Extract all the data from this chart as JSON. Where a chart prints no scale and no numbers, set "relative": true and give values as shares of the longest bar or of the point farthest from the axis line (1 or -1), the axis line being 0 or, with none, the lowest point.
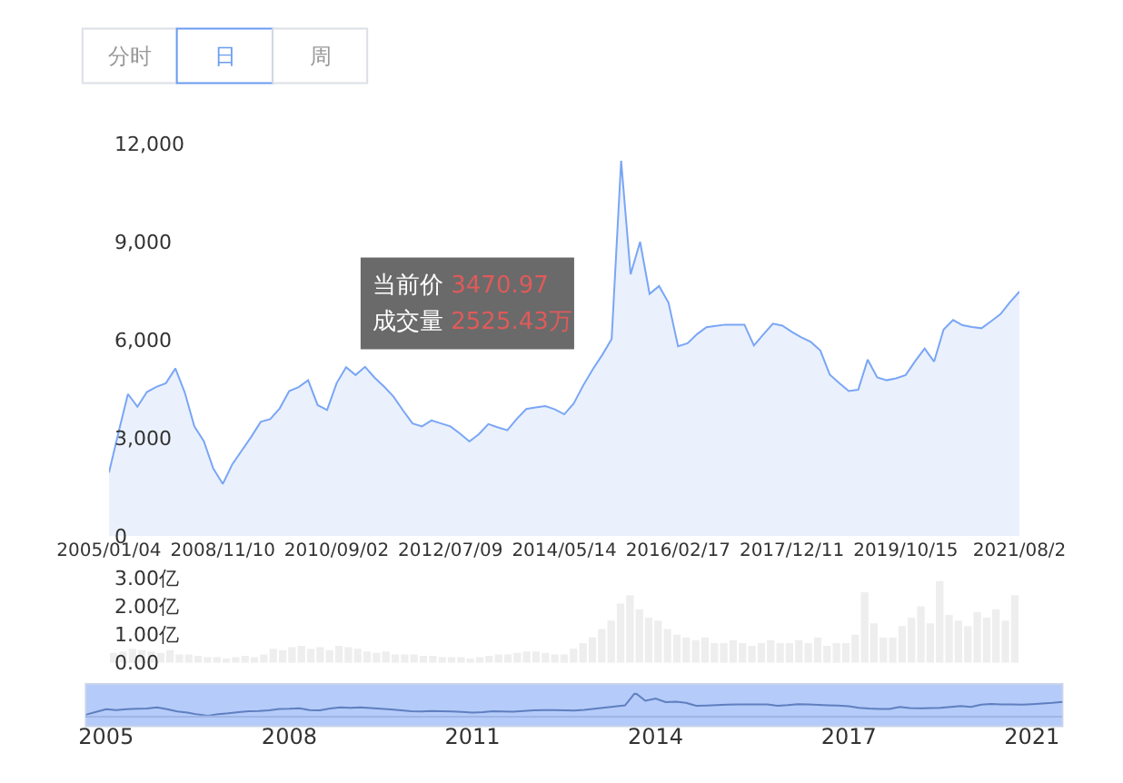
{
  "chart_data": [
    {
      "type": "area",
      "categories": [
        "2005/01/04",
        null,
        null,
        null,
        null,
        null,
        null,
        null,
        null,
        null,
        null,
        null,
        "2008/11/10",
        null,
        null,
        null,
        null,
        null,
        null,
        null,
        null,
        null,
        null,
        null,
        "2010/09/02",
        null,
        null,
        null,
        null,
        null,
        null,
        null,
        null,
        null,
        null,
        null,
        "2012/07/09",
        null,
        null,
        null,
        null,
        null,
        null,
        null,
        null,
        null,
        null,
        null,
        "2014/05/14",
        null,
        null,
        null,
        null,
        null,
        null,
        null,
        null,
        null,
        null,
        null,
        "2016/02/17",
        null,
        null,
        null,
        null,
        null,
        null,
        null,
        null,
        null,
        null,
        null,
        "2017/12/11",
        null,
        null,
        null,
        null,
        null,
        null,
        null,
        null,
        null,
        null,
        null,
        "2019/10/15",
        null,
        null,
        null,
        null,
        null,
        null,
        null,
        null,
        null,
        null,
        null,
        "2021/08/2"
      ],
      "series": [
        {
          "color": "#7aa6f5",
          "values": [
            1940,
            3160,
            4340,
            3950,
            4400,
            4560,
            4670,
            5120,
            4380,
            3350,
            2900,
            2060,
            1590,
            2190,
            2610,
            3030,
            3490,
            3570,
            3900,
            4430,
            4550,
            4760,
            4000,
            3850,
            4670,
            5160,
            4920,
            5170,
            4840,
            4570,
            4260,
            3840,
            3440,
            3350,
            3530,
            3440,
            3350,
            3130,
            2890,
            3110,
            3420,
            3320,
            3230,
            3580,
            3880,
            3930,
            3970,
            3870,
            3720,
            4050,
            4600,
            5090,
            5530,
            6020,
            11470,
            8000,
            8990,
            7400,
            7640,
            7130,
            5800,
            5890,
            6170,
            6380,
            6420,
            6460,
            6460,
            6460,
            5820,
            6160,
            6490,
            6430,
            6240,
            6070,
            5930,
            5670,
            4930,
            4670,
            4430,
            4470,
            5390,
            4850,
            4760,
            4820,
            4920,
            5340,
            5730,
            5330,
            6310,
            6600,
            6440,
            6390,
            6350,
            6560,
            6780,
            7150,
            7470
          ]
        }
      ],
      "ylim": [
        0,
        12000
      ],
      "yticks": [
        0,
        {
          "value": 3000,
          "label": "3,000"
        },
        {
          "value": 6000,
          "label": "6,000"
        },
        {
          "value": 9000,
          "label": "9,000"
        },
        {
          "value": 12000,
          "label": "12,000"
        }
      ],
      "annotations": [
        "分时",
        "日",
        "周",
        "当前价",
        "3470.97",
        "成交量",
        "2525.43万"
      ]
    },
    {
      "type": "bar",
      "categories": [
        null,
        null,
        null,
        null,
        null,
        null,
        null,
        null,
        null,
        null,
        null,
        null,
        null,
        null,
        null,
        null,
        null,
        null,
        null,
        null,
        null,
        null,
        null,
        null,
        null,
        null,
        null,
        null,
        null,
        null,
        null,
        null,
        null,
        null,
        null,
        null,
        null,
        null,
        null,
        null,
        null,
        null,
        null,
        null,
        null,
        null,
        null,
        null,
        null,
        null,
        null,
        null,
        null,
        null,
        null,
        null,
        null,
        null,
        null,
        null,
        null,
        null,
        null,
        null,
        null,
        null,
        null,
        null,
        null,
        null,
        null,
        null,
        null,
        null,
        null,
        null,
        null,
        null,
        null,
        null,
        null,
        null,
        null,
        null,
        null,
        null,
        null,
        null,
        null,
        null,
        null,
        null,
        null,
        null,
        null,
        null,
        null
      ],
      "series": [
        {
          "color": "#eeeeee",
          "values": [
            0.35,
            0.4,
            0.5,
            0.45,
            0.4,
            0.35,
            0.45,
            0.3,
            0.3,
            0.25,
            0.2,
            0.2,
            0.15,
            0.2,
            0.25,
            0.2,
            0.3,
            0.5,
            0.45,
            0.55,
            0.6,
            0.5,
            0.55,
            0.45,
            0.6,
            0.55,
            0.5,
            0.4,
            0.35,
            0.4,
            0.3,
            0.3,
            0.3,
            0.25,
            0.25,
            0.2,
            0.2,
            0.2,
            0.15,
            0.2,
            0.25,
            0.3,
            0.3,
            0.35,
            0.4,
            0.4,
            0.35,
            0.3,
            0.3,
            0.5,
            0.7,
            0.9,
            1.2,
            1.5,
            2.1,
            2.4,
            1.9,
            1.6,
            1.5,
            1.2,
            1.0,
            0.9,
            0.8,
            0.9,
            0.7,
            0.7,
            0.8,
            0.7,
            0.6,
            0.7,
            0.8,
            0.7,
            0.7,
            0.8,
            0.7,
            0.9,
            0.6,
            0.7,
            0.7,
            1.0,
            2.5,
            1.4,
            0.9,
            0.9,
            1.3,
            1.6,
            2.0,
            1.4,
            2.9,
            1.7,
            1.5,
            1.3,
            1.8,
            1.6,
            1.9,
            1.5,
            2.4
          ]
        }
      ],
      "ylim": [
        0,
        3
      ],
      "yticks": [
        {
          "value": 0,
          "label": "0.00"
        },
        {
          "value": 1,
          "label": "1.00亿"
        },
        {
          "value": 2,
          "label": "2.00亿"
        },
        {
          "value": 3,
          "label": "3.00亿"
        }
      ],
      "tick_labels": "y"
    },
    {
      "type": "line",
      "relative": true,
      "categories": [
        null,
        null,
        "2005",
        null,
        null,
        null,
        null,
        null,
        null,
        null,
        null,
        null,
        null,
        null,
        null,
        null,
        null,
        null,
        null,
        null,
        "2008",
        null,
        null,
        null,
        null,
        null,
        null,
        null,
        null,
        null,
        null,
        null,
        null,
        null,
        null,
        null,
        null,
        null,
        "2011",
        null,
        null,
        null,
        null,
        null,
        null,
        null,
        null,
        null,
        null,
        null,
        null,
        null,
        null,
        null,
        null,
        null,
        "2014",
        null,
        null,
        null,
        null,
        null,
        null,
        null,
        null,
        null,
        null,
        null,
        null,
        null,
        null,
        null,
        null,
        null,
        null,
        "2017",
        null,
        null,
        null,
        null,
        null,
        null,
        null,
        null,
        null,
        null,
        null,
        null,
        null,
        null,
        null,
        null,
        null,
        "2021",
        null,
        null,
        null
      ],
      "series": [
        {
          "color": "#5f7fc0",
          "values": [
            0.04,
            0.16,
            0.28,
            0.24,
            0.28,
            0.3,
            0.31,
            0.36,
            0.28,
            0.18,
            0.13,
            0.05,
            0,
            0.06,
            0.1,
            0.15,
            0.19,
            0.2,
            0.23,
            0.29,
            0.3,
            0.32,
            0.24,
            0.23,
            0.31,
            0.36,
            0.34,
            0.36,
            0.33,
            0.3,
            0.27,
            0.23,
            0.19,
            0.18,
            0.2,
            0.19,
            0.18,
            0.16,
            0.13,
            0.15,
            0.19,
            0.18,
            0.17,
            0.2,
            0.23,
            0.24,
            0.24,
            0.23,
            0.22,
            0.25,
            0.3,
            0.35,
            0.4,
            0.45,
            1,
            0.65,
            0.75,
            0.59,
            0.61,
            0.56,
            0.43,
            0.44,
            0.46,
            0.48,
            0.49,
            0.49,
            0.49,
            0.49,
            0.43,
            0.46,
            0.5,
            0.49,
            0.47,
            0.45,
            0.44,
            0.41,
            0.34,
            0.31,
            0.29,
            0.29,
            0.38,
            0.33,
            0.32,
            0.33,
            0.34,
            0.38,
            0.42,
            0.38,
            0.48,
            0.51,
            0.49,
            0.49,
            0.48,
            0.5,
            0.53,
            0.56,
            0.6
          ]
        }
      ]
    }
  ]
}
